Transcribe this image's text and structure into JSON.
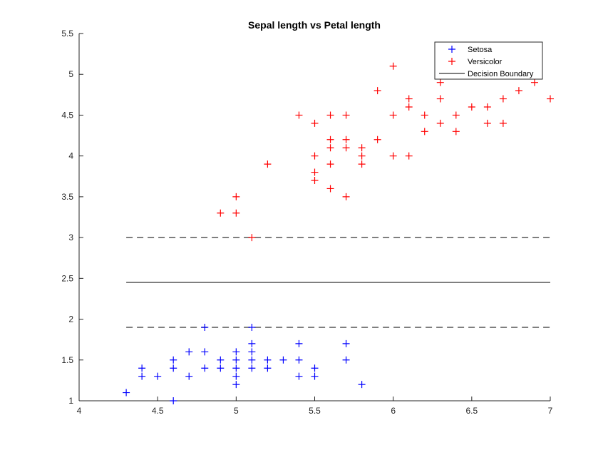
{
  "chart_data": {
    "type": "scatter",
    "title": "Sepal length vs Petal length",
    "xlabel": "",
    "ylabel": "",
    "xlim": [
      4,
      7
    ],
    "ylim": [
      1,
      5.5
    ],
    "xticks": [
      4,
      4.5,
      5,
      5.5,
      6,
      6.5,
      7
    ],
    "yticks": [
      1,
      1.5,
      2,
      2.5,
      3,
      3.5,
      4,
      4.5,
      5,
      5.5
    ],
    "grid": false,
    "legend": {
      "placement": "top-right"
    },
    "series": [
      {
        "name": "Setosa",
        "marker": "+",
        "color": "#0000ff",
        "points": [
          [
            4.3,
            1.1
          ],
          [
            4.4,
            1.4
          ],
          [
            4.4,
            1.3
          ],
          [
            4.5,
            1.3
          ],
          [
            4.6,
            1.5
          ],
          [
            4.6,
            1.4
          ],
          [
            4.6,
            1.0
          ],
          [
            4.7,
            1.6
          ],
          [
            4.7,
            1.3
          ],
          [
            4.8,
            1.9
          ],
          [
            4.8,
            1.6
          ],
          [
            4.8,
            1.4
          ],
          [
            4.9,
            1.5
          ],
          [
            4.9,
            1.4
          ],
          [
            5.0,
            1.6
          ],
          [
            5.0,
            1.5
          ],
          [
            5.0,
            1.4
          ],
          [
            5.0,
            1.3
          ],
          [
            5.0,
            1.2
          ],
          [
            5.1,
            1.9
          ],
          [
            5.1,
            1.7
          ],
          [
            5.1,
            1.6
          ],
          [
            5.1,
            1.5
          ],
          [
            5.1,
            1.4
          ],
          [
            5.2,
            1.5
          ],
          [
            5.2,
            1.4
          ],
          [
            5.3,
            1.5
          ],
          [
            5.4,
            1.7
          ],
          [
            5.4,
            1.5
          ],
          [
            5.4,
            1.3
          ],
          [
            5.5,
            1.4
          ],
          [
            5.5,
            1.3
          ],
          [
            5.7,
            1.7
          ],
          [
            5.7,
            1.5
          ],
          [
            5.8,
            1.2
          ]
        ]
      },
      {
        "name": "Versicolor",
        "marker": "+",
        "color": "#ff0000",
        "points": [
          [
            4.9,
            3.3
          ],
          [
            5.0,
            3.5
          ],
          [
            5.0,
            3.3
          ],
          [
            5.1,
            3.0
          ],
          [
            5.2,
            3.9
          ],
          [
            5.4,
            4.5
          ],
          [
            5.5,
            4.4
          ],
          [
            5.5,
            4.0
          ],
          [
            5.5,
            3.8
          ],
          [
            5.5,
            3.7
          ],
          [
            5.6,
            4.5
          ],
          [
            5.6,
            4.2
          ],
          [
            5.6,
            4.1
          ],
          [
            5.6,
            3.9
          ],
          [
            5.6,
            3.6
          ],
          [
            5.7,
            4.5
          ],
          [
            5.7,
            4.2
          ],
          [
            5.7,
            4.1
          ],
          [
            5.7,
            3.5
          ],
          [
            5.8,
            4.1
          ],
          [
            5.8,
            4.0
          ],
          [
            5.8,
            3.9
          ],
          [
            5.9,
            4.8
          ],
          [
            5.9,
            4.2
          ],
          [
            6.0,
            5.1
          ],
          [
            6.0,
            4.5
          ],
          [
            6.0,
            4.0
          ],
          [
            6.1,
            4.7
          ],
          [
            6.1,
            4.6
          ],
          [
            6.1,
            4.0
          ],
          [
            6.2,
            4.5
          ],
          [
            6.2,
            4.3
          ],
          [
            6.3,
            4.9
          ],
          [
            6.3,
            4.7
          ],
          [
            6.3,
            4.4
          ],
          [
            6.4,
            4.5
          ],
          [
            6.4,
            4.3
          ],
          [
            6.5,
            4.6
          ],
          [
            6.6,
            4.6
          ],
          [
            6.6,
            4.4
          ],
          [
            6.7,
            4.7
          ],
          [
            6.7,
            4.4
          ],
          [
            6.8,
            4.8
          ],
          [
            6.9,
            4.9
          ],
          [
            7.0,
            4.7
          ]
        ]
      }
    ],
    "lines": [
      {
        "name": "Decision Boundary",
        "style": "solid",
        "color": "#555555",
        "x": [
          4.3,
          7.0
        ],
        "y": [
          2.45,
          2.45
        ],
        "in_legend": true
      },
      {
        "style": "dashed",
        "color": "#555555",
        "x": [
          4.3,
          7.0
        ],
        "y": [
          3.0,
          3.0
        ],
        "in_legend": false
      },
      {
        "style": "dashed",
        "color": "#555555",
        "x": [
          4.3,
          7.0
        ],
        "y": [
          1.9,
          1.9
        ],
        "in_legend": false
      }
    ]
  }
}
